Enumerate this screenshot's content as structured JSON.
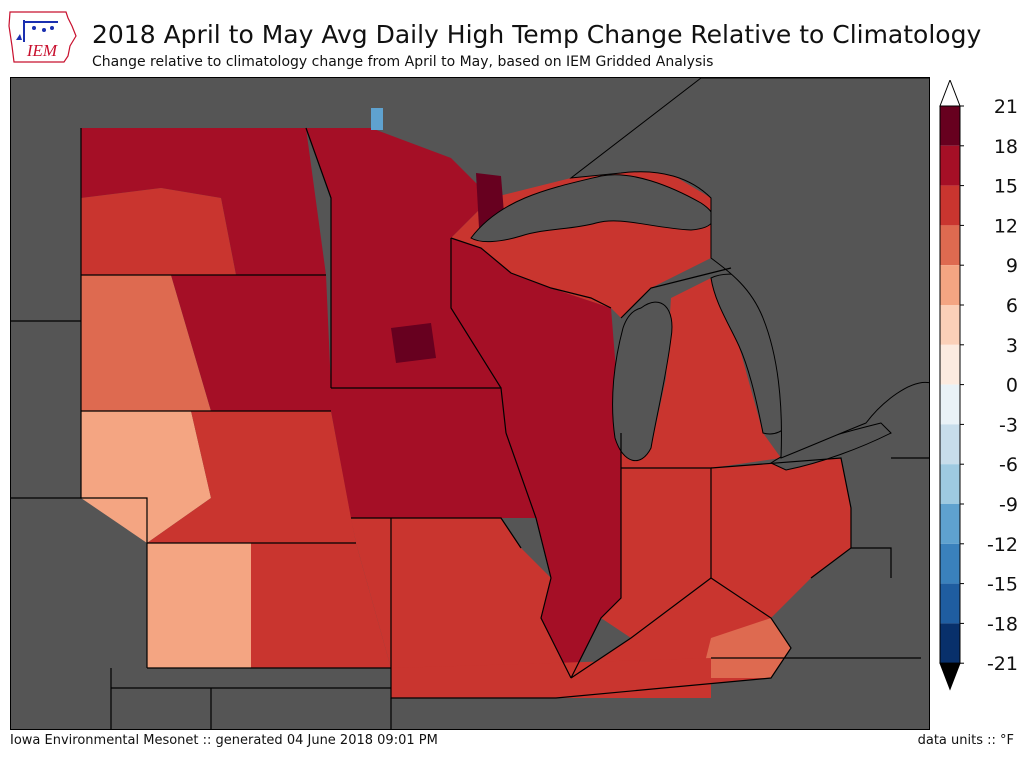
{
  "header": {
    "logo_text": "IEM",
    "title": "2018 April to May Avg Daily High Temp Change Relative to Climatology",
    "subtitle": "Change relative to climatology change from April to May, based on IEM Gridded Analysis"
  },
  "footer": {
    "credit": "Iowa Environmental Mesonet :: generated 04 June 2018 09:01 PM",
    "units": "data units :: °F"
  },
  "colors": {
    "no_data": "#555555",
    "state_border": "#000000",
    "logo_red": "#c8102e",
    "logo_blue": "#1a2fb0"
  },
  "colorbar": {
    "labels": [
      "21",
      "18",
      "15",
      "12",
      "9",
      "6",
      "3",
      "0",
      "-3",
      "-6",
      "-9",
      "-12",
      "-15",
      "-18",
      "-21"
    ],
    "colors": [
      "#67001f",
      "#a50f26",
      "#c9352f",
      "#de6a50",
      "#f4a582",
      "#fbd0b8",
      "#fcebe0",
      "#e9f2f7",
      "#c7ddeb",
      "#9ecae1",
      "#5fa2cf",
      "#3a81bc",
      "#1f5da0",
      "#08306b"
    ],
    "extend_max_color": "#ffffff",
    "extend_min_color": "#000000"
  },
  "map_regions": [
    {
      "name": "ND-NE",
      "value": 15
    },
    {
      "name": "ND-W",
      "value": 12
    },
    {
      "name": "SD-W",
      "value": 9
    },
    {
      "name": "SD-E",
      "value": 15
    },
    {
      "name": "NE-W",
      "value": 6
    },
    {
      "name": "NE-E",
      "value": 12
    },
    {
      "name": "KS-W",
      "value": 6
    },
    {
      "name": "KS-E",
      "value": 12
    },
    {
      "name": "MN",
      "value": 15
    },
    {
      "name": "WI",
      "value": 15
    },
    {
      "name": "IA",
      "value": 15
    },
    {
      "name": "MO",
      "value": 12
    },
    {
      "name": "IL",
      "value": 15
    },
    {
      "name": "IN",
      "value": 12
    },
    {
      "name": "MI-UP",
      "value": 12
    },
    {
      "name": "MI-LP",
      "value": 12
    },
    {
      "name": "OH",
      "value": 12
    },
    {
      "name": "KY",
      "value": 12
    },
    {
      "name": "KY-SE",
      "value": 9
    },
    {
      "name": "AR-TN",
      "value": 12
    },
    {
      "name": "MN-NE-PEAK",
      "value": 18
    },
    {
      "name": "MN-C-PEAK",
      "value": 18
    },
    {
      "name": "ONT-LAKE",
      "value": -12
    }
  ]
}
